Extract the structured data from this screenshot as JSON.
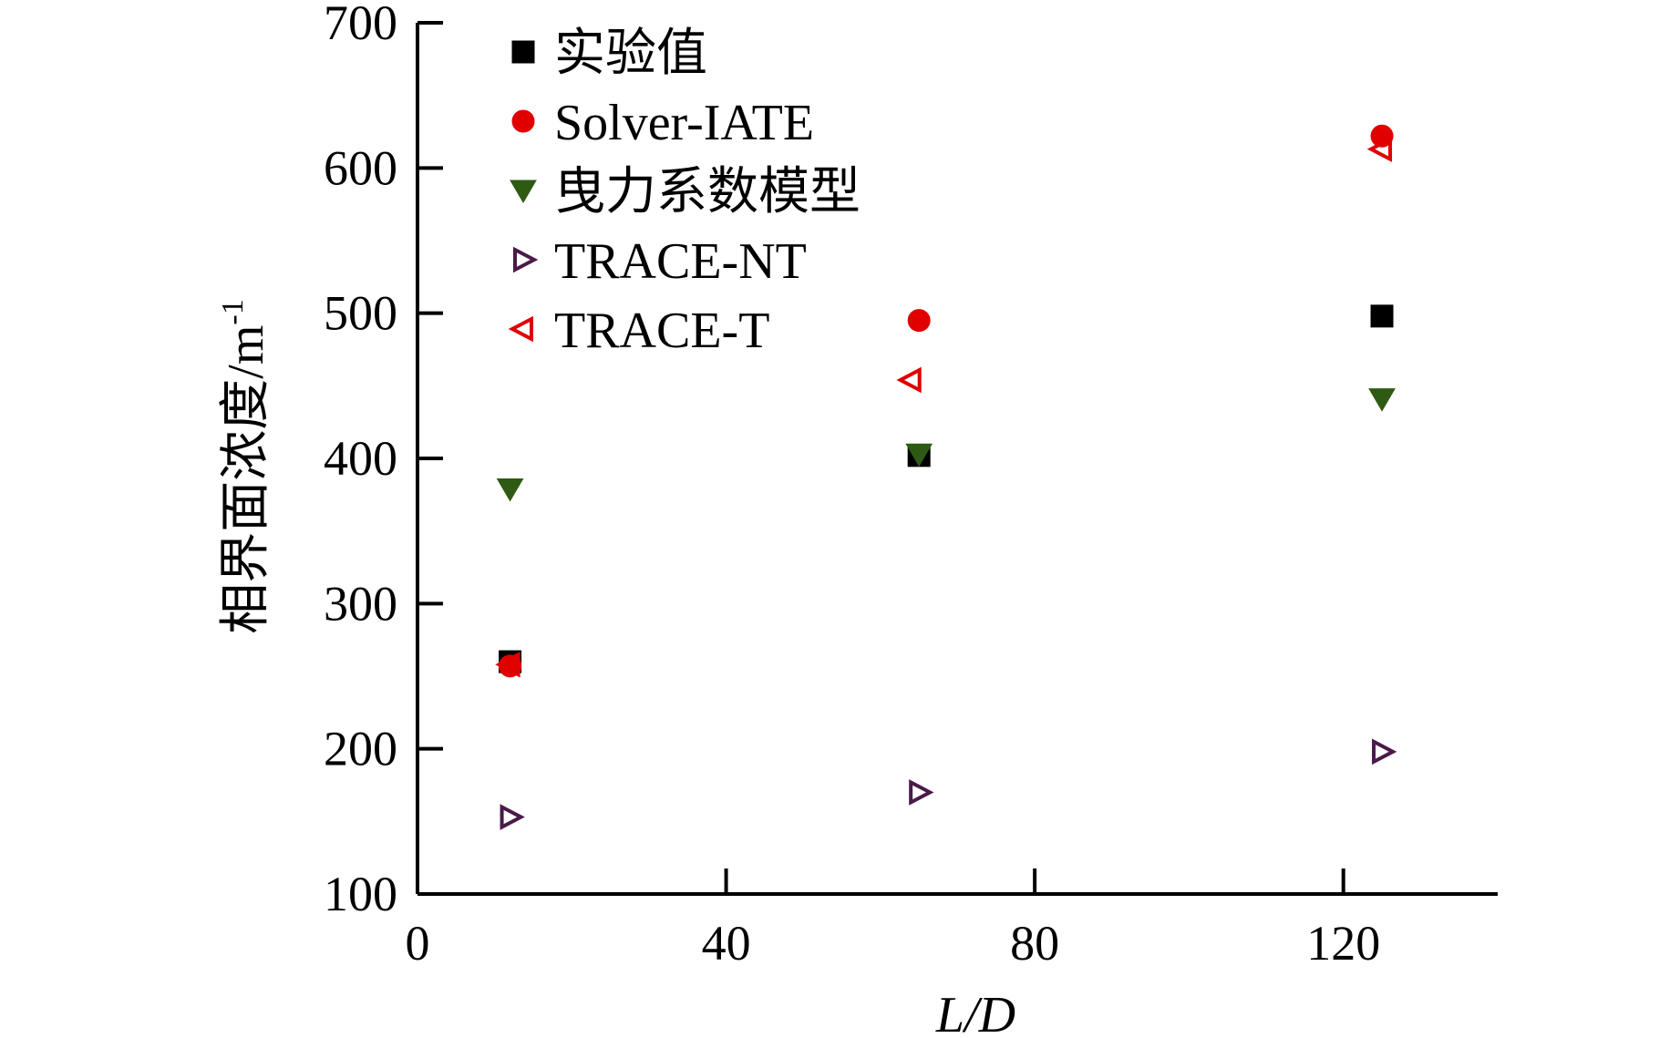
{
  "chart_data": {
    "type": "scatter",
    "xlabel": "L/D",
    "ylabel": "相界面浓度/m",
    "ylabel_superscript": "-1",
    "xlim": [
      0,
      140
    ],
    "ylim": [
      100,
      700
    ],
    "xticks": [
      0,
      40,
      80,
      120
    ],
    "yticks": [
      100,
      200,
      300,
      400,
      500,
      600,
      700
    ],
    "grid": false,
    "legend_position": "top-left",
    "series": [
      {
        "name": "实验值",
        "marker": "square",
        "filled": true,
        "color": "#000000",
        "x": [
          12,
          65,
          125
        ],
        "y": [
          260,
          402,
          498
        ]
      },
      {
        "name": "Solver-IATE",
        "marker": "circle",
        "filled": true,
        "color": "#e00000",
        "x": [
          12,
          65,
          125
        ],
        "y": [
          257,
          495,
          622
        ]
      },
      {
        "name": "曳力系数模型",
        "marker": "triangle-down",
        "filled": true,
        "color": "#2e5a14",
        "x": [
          12,
          65,
          125
        ],
        "y": [
          379,
          403,
          441
        ]
      },
      {
        "name": "TRACE-NT",
        "marker": "triangle-right",
        "filled": false,
        "color": "#4a1a4a",
        "x": [
          12,
          65,
          125
        ],
        "y": [
          153,
          170,
          198
        ]
      },
      {
        "name": "TRACE-T",
        "marker": "triangle-left",
        "filled": false,
        "color": "#e00000",
        "x": [
          12,
          64,
          125
        ],
        "y": [
          258,
          454,
          613
        ]
      }
    ]
  }
}
